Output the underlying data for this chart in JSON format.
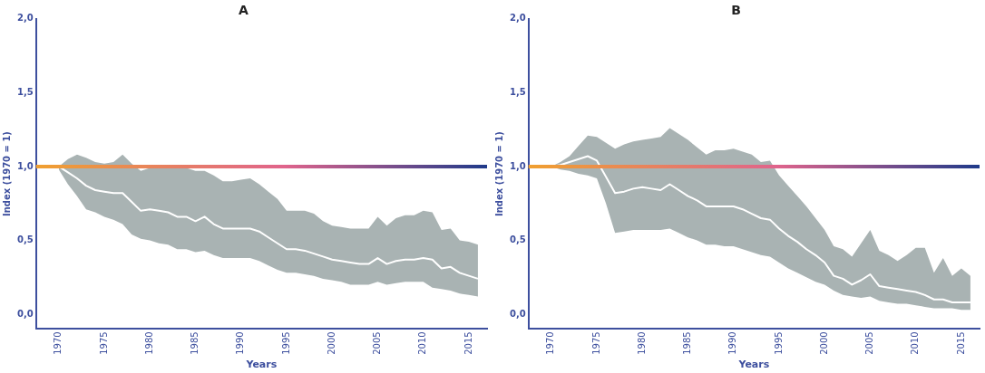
{
  "chart_data": [
    {
      "type": "line",
      "title": "A",
      "xlabel": "Years",
      "ylabel": "Index (1970 = 1)",
      "xlim": [
        1967.5,
        2017
      ],
      "xticks": [
        1970,
        1975,
        1980,
        1985,
        1990,
        1995,
        2000,
        2005,
        2010,
        2015
      ],
      "ylim": [
        -0.1,
        2.0
      ],
      "yticks": [
        {
          "value": 0,
          "label": "0,0"
        },
        {
          "value": 0.5,
          "label": "0,5"
        },
        {
          "value": 1,
          "label": "1,0"
        },
        {
          "value": 1.5,
          "label": "1,5"
        },
        {
          "value": 2,
          "label": "2,0"
        }
      ],
      "grid": false,
      "legend": false,
      "marker": "none",
      "line_style": "solid",
      "ref_lines": [
        {
          "axis": "y",
          "value": 1,
          "color": "#f0a030"
        }
      ],
      "series": [
        {
          "color": "#ffffff",
          "x": [
            1970,
            1971,
            1972,
            1973,
            1974,
            1975,
            1976,
            1977,
            1978,
            1979,
            1980,
            1981,
            1982,
            1983,
            1984,
            1985,
            1986,
            1987,
            1988,
            1989,
            1990,
            1991,
            1992,
            1993,
            1994,
            1995,
            1996,
            1997,
            1998,
            1999,
            2000,
            2001,
            2002,
            2003,
            2004,
            2005,
            2006,
            2007,
            2008,
            2009,
            2010,
            2011,
            2012,
            2013,
            2014,
            2015,
            2016
          ],
          "values": [
            1.0,
            0.96,
            0.92,
            0.87,
            0.84,
            0.83,
            0.82,
            0.82,
            0.76,
            0.7,
            0.71,
            0.7,
            0.69,
            0.66,
            0.66,
            0.63,
            0.66,
            0.61,
            0.58,
            0.58,
            0.58,
            0.58,
            0.56,
            0.52,
            0.48,
            0.44,
            0.44,
            0.43,
            0.41,
            0.39,
            0.37,
            0.36,
            0.35,
            0.34,
            0.34,
            0.38,
            0.34,
            0.36,
            0.37,
            0.37,
            0.38,
            0.37,
            0.31,
            0.32,
            0.28,
            0.26,
            0.24
          ],
          "upper": [
            1.0,
            1.05,
            1.08,
            1.06,
            1.03,
            1.02,
            1.03,
            1.08,
            1.02,
            0.97,
            0.99,
            1.0,
            0.99,
            0.99,
            0.99,
            0.97,
            0.97,
            0.94,
            0.9,
            0.9,
            0.91,
            0.92,
            0.88,
            0.83,
            0.78,
            0.7,
            0.7,
            0.7,
            0.68,
            0.63,
            0.6,
            0.59,
            0.58,
            0.58,
            0.58,
            0.66,
            0.6,
            0.65,
            0.67,
            0.67,
            0.7,
            0.69,
            0.57,
            0.58,
            0.5,
            0.49,
            0.47
          ],
          "lower": [
            0.98,
            0.88,
            0.8,
            0.71,
            0.69,
            0.66,
            0.64,
            0.61,
            0.54,
            0.51,
            0.5,
            0.48,
            0.47,
            0.44,
            0.44,
            0.42,
            0.43,
            0.4,
            0.38,
            0.38,
            0.38,
            0.38,
            0.36,
            0.33,
            0.3,
            0.28,
            0.28,
            0.27,
            0.26,
            0.24,
            0.23,
            0.22,
            0.2,
            0.2,
            0.2,
            0.22,
            0.2,
            0.21,
            0.22,
            0.22,
            0.22,
            0.18,
            0.17,
            0.16,
            0.14,
            0.13,
            0.12
          ]
        }
      ]
    },
    {
      "type": "line",
      "title": "B",
      "xlabel": "Years",
      "ylabel": "Index (1970 = 1)",
      "xlim": [
        1967.5,
        2017
      ],
      "xticks": [
        1970,
        1975,
        1980,
        1985,
        1990,
        1995,
        2000,
        2005,
        2010,
        2015
      ],
      "ylim": [
        -0.1,
        2.0
      ],
      "yticks": [
        {
          "value": 0,
          "label": "0,0"
        },
        {
          "value": 0.5,
          "label": "0,5"
        },
        {
          "value": 1,
          "label": "1,0"
        },
        {
          "value": 1.5,
          "label": "1,5"
        },
        {
          "value": 2,
          "label": "2,0"
        }
      ],
      "grid": false,
      "legend": false,
      "marker": "none",
      "line_style": "solid",
      "ref_lines": [
        {
          "axis": "y",
          "value": 1,
          "color": "#f0a030"
        }
      ],
      "series": [
        {
          "color": "#ffffff",
          "x": [
            1970,
            1971,
            1972,
            1973,
            1974,
            1975,
            1976,
            1977,
            1978,
            1979,
            1980,
            1981,
            1982,
            1983,
            1984,
            1985,
            1986,
            1987,
            1988,
            1989,
            1990,
            1991,
            1992,
            1993,
            1994,
            1995,
            1996,
            1997,
            1998,
            1999,
            2000,
            2001,
            2002,
            2003,
            2004,
            2005,
            2006,
            2007,
            2008,
            2009,
            2010,
            2011,
            2012,
            2013,
            2014,
            2015,
            2016
          ],
          "values": [
            1.0,
            1.01,
            1.03,
            1.05,
            1.07,
            1.04,
            0.93,
            0.82,
            0.83,
            0.85,
            0.86,
            0.85,
            0.84,
            0.88,
            0.84,
            0.8,
            0.77,
            0.73,
            0.73,
            0.73,
            0.73,
            0.71,
            0.68,
            0.65,
            0.64,
            0.58,
            0.53,
            0.49,
            0.44,
            0.4,
            0.35,
            0.26,
            0.24,
            0.2,
            0.23,
            0.27,
            0.19,
            0.18,
            0.17,
            0.16,
            0.15,
            0.13,
            0.1,
            0.1,
            0.08,
            0.08,
            0.08
          ],
          "upper": [
            1.0,
            1.03,
            1.07,
            1.14,
            1.21,
            1.2,
            1.16,
            1.12,
            1.15,
            1.17,
            1.18,
            1.19,
            1.2,
            1.26,
            1.22,
            1.18,
            1.13,
            1.08,
            1.11,
            1.11,
            1.12,
            1.1,
            1.08,
            1.03,
            1.04,
            0.94,
            0.87,
            0.8,
            0.73,
            0.65,
            0.57,
            0.46,
            0.44,
            0.39,
            0.48,
            0.57,
            0.43,
            0.4,
            0.36,
            0.4,
            0.45,
            0.45,
            0.28,
            0.38,
            0.26,
            0.31,
            0.26
          ],
          "lower": [
            1.0,
            0.98,
            0.97,
            0.95,
            0.94,
            0.92,
            0.75,
            0.55,
            0.56,
            0.57,
            0.57,
            0.57,
            0.57,
            0.58,
            0.55,
            0.52,
            0.5,
            0.47,
            0.47,
            0.46,
            0.46,
            0.44,
            0.42,
            0.4,
            0.39,
            0.35,
            0.31,
            0.28,
            0.25,
            0.22,
            0.2,
            0.16,
            0.13,
            0.12,
            0.11,
            0.12,
            0.09,
            0.08,
            0.07,
            0.07,
            0.06,
            0.05,
            0.04,
            0.04,
            0.04,
            0.03,
            0.03
          ]
        }
      ]
    }
  ]
}
